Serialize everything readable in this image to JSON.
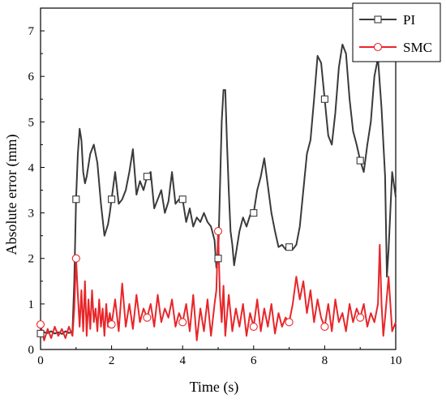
{
  "chart_data": {
    "type": "line",
    "title": "",
    "xlabel": "Time (s)",
    "ylabel": "Absolute error (mm)",
    "xlim": [
      0,
      10
    ],
    "ylim": [
      0,
      7.5
    ],
    "xticks": [
      "0",
      "2",
      "4",
      "6",
      "8",
      "10"
    ],
    "yticks": [
      "0",
      "1",
      "2",
      "3",
      "4",
      "5",
      "6",
      "7"
    ],
    "grid": false,
    "legend": {
      "position": "top-right",
      "entries": [
        "PI",
        "SMC"
      ]
    },
    "series": [
      {
        "name": "PI",
        "color": "#3a3a3a",
        "marker": "square",
        "marker_x": [
          0,
          1,
          2,
          3,
          4,
          5,
          6,
          7,
          8,
          9
        ],
        "x": [
          0,
          0.1,
          0.2,
          0.3,
          0.4,
          0.5,
          0.6,
          0.7,
          0.8,
          0.9,
          0.95,
          1.0,
          1.05,
          1.1,
          1.15,
          1.2,
          1.25,
          1.3,
          1.4,
          1.5,
          1.6,
          1.7,
          1.8,
          1.9,
          1.95,
          2.0,
          2.1,
          2.2,
          2.3,
          2.4,
          2.5,
          2.6,
          2.7,
          2.8,
          2.9,
          3.0,
          3.1,
          3.2,
          3.3,
          3.4,
          3.5,
          3.6,
          3.7,
          3.8,
          3.9,
          4.0,
          4.1,
          4.2,
          4.3,
          4.4,
          4.5,
          4.6,
          4.7,
          4.8,
          4.9,
          4.95,
          5.0,
          5.05,
          5.1,
          5.15,
          5.2,
          5.25,
          5.3,
          5.35,
          5.4,
          5.45,
          5.5,
          5.6,
          5.7,
          5.8,
          5.9,
          6.0,
          6.1,
          6.2,
          6.3,
          6.4,
          6.5,
          6.6,
          6.7,
          6.8,
          6.9,
          7.0,
          7.1,
          7.2,
          7.3,
          7.4,
          7.5,
          7.6,
          7.7,
          7.8,
          7.9,
          8.0,
          8.1,
          8.2,
          8.3,
          8.4,
          8.5,
          8.6,
          8.7,
          8.8,
          8.9,
          9.0,
          9.1,
          9.2,
          9.3,
          9.4,
          9.5,
          9.6,
          9.7,
          9.75,
          9.8,
          9.9,
          10.0
        ],
        "y": [
          0.35,
          0.38,
          0.36,
          0.4,
          0.35,
          0.38,
          0.34,
          0.4,
          0.36,
          0.4,
          1.5,
          3.3,
          4.3,
          4.85,
          4.6,
          3.9,
          3.65,
          3.8,
          4.3,
          4.5,
          4.1,
          3.2,
          2.5,
          2.75,
          3.0,
          3.3,
          3.9,
          3.2,
          3.3,
          3.5,
          3.9,
          4.4,
          3.4,
          3.7,
          3.5,
          3.8,
          3.9,
          3.1,
          3.3,
          3.5,
          3.0,
          3.25,
          3.9,
          3.2,
          3.3,
          3.3,
          2.8,
          3.1,
          2.7,
          2.9,
          2.8,
          3.0,
          2.8,
          2.7,
          2.4,
          1.8,
          2.0,
          3.5,
          5.0,
          5.7,
          5.7,
          4.5,
          3.5,
          2.6,
          2.3,
          1.85,
          2.1,
          2.6,
          2.9,
          2.7,
          2.95,
          3.0,
          3.5,
          3.8,
          4.2,
          3.6,
          3.0,
          2.6,
          2.25,
          2.3,
          2.2,
          2.25,
          2.2,
          2.3,
          2.7,
          3.5,
          4.3,
          4.6,
          5.5,
          6.45,
          6.3,
          5.5,
          4.7,
          4.5,
          5.2,
          6.2,
          6.7,
          6.5,
          5.5,
          4.8,
          4.5,
          4.15,
          3.9,
          4.5,
          5.0,
          6.0,
          6.4,
          5.3,
          3.8,
          1.6,
          2.2,
          3.9,
          3.35
        ]
      },
      {
        "name": "SMC",
        "color": "#e8262a",
        "marker": "circle",
        "marker_x": [
          0,
          1,
          2,
          3,
          4,
          5,
          6,
          7,
          8,
          9
        ],
        "x": [
          0,
          0.1,
          0.2,
          0.3,
          0.4,
          0.5,
          0.6,
          0.7,
          0.8,
          0.9,
          0.95,
          1.0,
          1.05,
          1.1,
          1.15,
          1.2,
          1.25,
          1.3,
          1.35,
          1.4,
          1.45,
          1.5,
          1.55,
          1.6,
          1.65,
          1.7,
          1.75,
          1.8,
          1.85,
          1.9,
          1.95,
          2.0,
          2.1,
          2.2,
          2.3,
          2.4,
          2.5,
          2.6,
          2.7,
          2.8,
          2.9,
          3.0,
          3.1,
          3.2,
          3.3,
          3.4,
          3.5,
          3.6,
          3.7,
          3.8,
          3.9,
          4.0,
          4.1,
          4.2,
          4.3,
          4.4,
          4.5,
          4.6,
          4.7,
          4.8,
          4.9,
          4.95,
          5.0,
          5.05,
          5.1,
          5.15,
          5.2,
          5.3,
          5.4,
          5.5,
          5.6,
          5.7,
          5.8,
          5.9,
          6.0,
          6.1,
          6.2,
          6.3,
          6.4,
          6.5,
          6.6,
          6.7,
          6.8,
          6.9,
          7.0,
          7.1,
          7.2,
          7.3,
          7.4,
          7.5,
          7.6,
          7.7,
          7.8,
          7.9,
          8.0,
          8.1,
          8.2,
          8.3,
          8.4,
          8.5,
          8.6,
          8.7,
          8.8,
          8.9,
          9.0,
          9.1,
          9.2,
          9.3,
          9.4,
          9.5,
          9.55,
          9.6,
          9.65,
          9.7,
          9.8,
          9.9,
          10.0
        ],
        "y": [
          0.55,
          0.2,
          0.45,
          0.25,
          0.5,
          0.3,
          0.45,
          0.25,
          0.5,
          0.3,
          0.9,
          2.0,
          1.2,
          0.5,
          1.3,
          0.4,
          1.5,
          0.3,
          1.1,
          0.45,
          1.3,
          0.6,
          0.9,
          0.4,
          1.1,
          0.5,
          0.9,
          0.3,
          1.0,
          0.5,
          0.8,
          0.55,
          1.1,
          0.4,
          1.45,
          0.5,
          1.0,
          0.45,
          1.2,
          0.6,
          0.9,
          0.7,
          1.0,
          0.5,
          1.2,
          0.6,
          0.9,
          0.7,
          1.1,
          0.5,
          0.8,
          0.6,
          1.0,
          0.4,
          1.2,
          0.2,
          0.9,
          0.4,
          1.1,
          0.3,
          1.0,
          1.3,
          2.6,
          1.2,
          0.6,
          1.4,
          0.3,
          1.2,
          0.4,
          0.9,
          0.5,
          1.0,
          0.3,
          0.8,
          0.5,
          1.1,
          0.4,
          0.9,
          0.5,
          1.0,
          0.35,
          0.8,
          0.5,
          0.7,
          0.6,
          1.0,
          1.6,
          1.1,
          1.5,
          0.8,
          1.3,
          0.6,
          1.1,
          0.7,
          0.5,
          1.0,
          0.4,
          1.1,
          0.6,
          0.8,
          0.4,
          1.0,
          0.6,
          0.9,
          0.7,
          1.0,
          0.5,
          0.8,
          0.6,
          1.0,
          2.3,
          1.0,
          0.3,
          0.7,
          1.6,
          0.4,
          0.6
        ]
      }
    ]
  }
}
